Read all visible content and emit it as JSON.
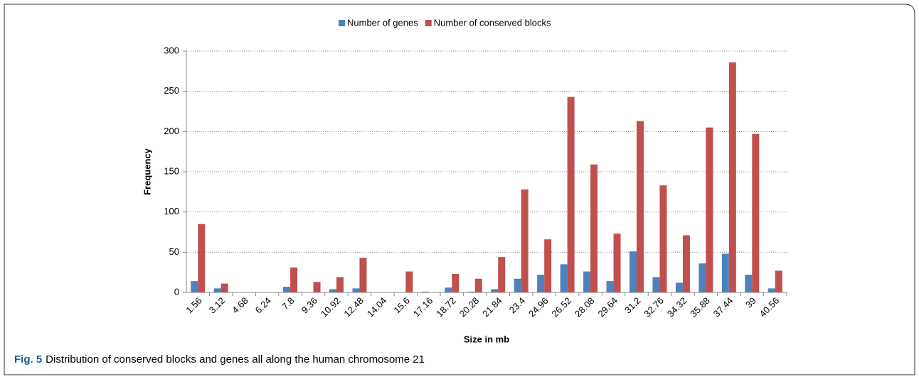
{
  "chart_data": {
    "type": "bar",
    "categories": [
      "1.56",
      "3.12",
      "4.68",
      "6.24",
      "7.8",
      "9.36",
      "10.92",
      "12.48",
      "14.04",
      "15.6",
      "17.16",
      "18.72",
      "20.28",
      "21.84",
      "23.4",
      "24.96",
      "26.52",
      "28.08",
      "29.64",
      "31.2",
      "32.76",
      "34.32",
      "35.88",
      "37.44",
      "39",
      "40.56"
    ],
    "series": [
      {
        "name": "Number of genes",
        "color": "#4f81bd",
        "values": [
          14,
          5,
          0,
          0,
          7,
          0,
          4,
          5,
          0,
          0,
          1,
          6,
          1,
          4,
          17,
          22,
          35,
          26,
          14,
          51,
          19,
          12,
          36,
          48,
          22,
          5
        ]
      },
      {
        "name": "Number of conserved blocks",
        "color": "#c0504d",
        "values": [
          85,
          11,
          0,
          0,
          31,
          13,
          19,
          43,
          0,
          26,
          0,
          23,
          17,
          44,
          128,
          66,
          243,
          159,
          73,
          213,
          133,
          71,
          205,
          286,
          197,
          27
        ]
      }
    ],
    "ylim": [
      0,
      300
    ],
    "yticks": [
      0,
      50,
      100,
      150,
      200,
      250,
      300
    ],
    "xlabel": "Size in mb",
    "ylabel": "Frequency",
    "grid": true,
    "legend": "top"
  },
  "figure": {
    "label": "Fig. 5",
    "caption": "Distribution of conserved blocks and genes all along the human chromosome 21"
  }
}
